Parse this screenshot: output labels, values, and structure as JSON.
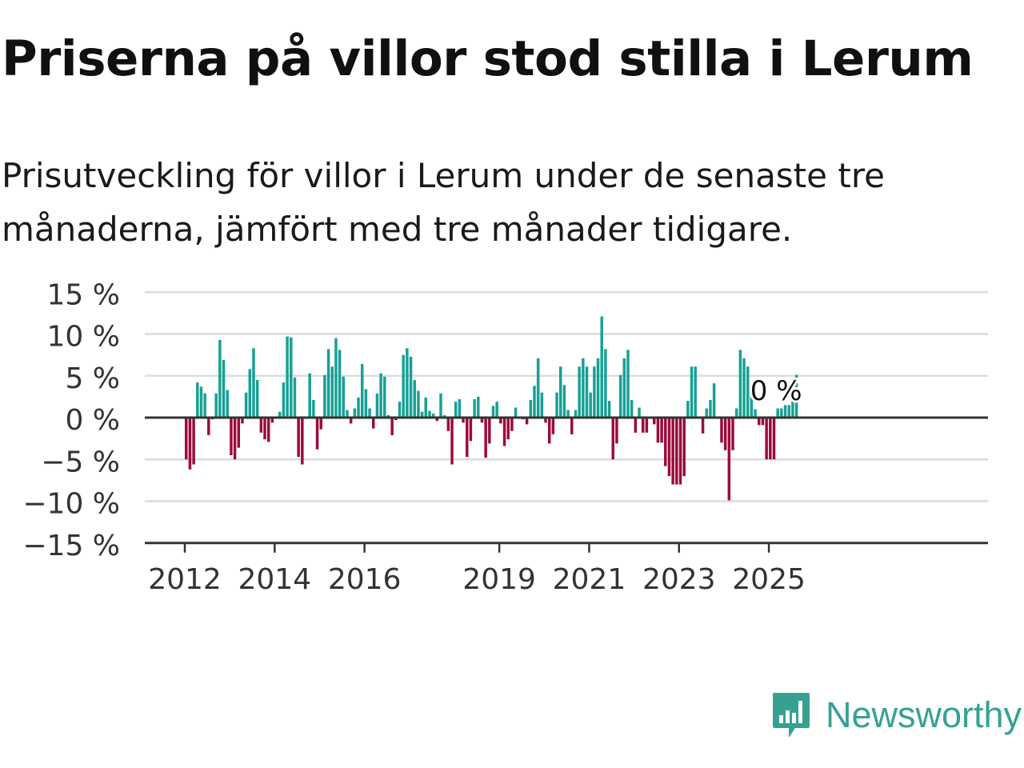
{
  "title": "Priserna på villor stod stilla i Lerum",
  "subtitle": "Prisutveckling för villor i Lerum under de senaste tre månaderna, jämfört med tre månader tidigare.",
  "logo": {
    "name": "Newsworthy",
    "icon": "newsworthy-bar-chart-icon"
  },
  "colors": {
    "positive": "#17a094",
    "negative": "#9b0a3c",
    "grid": "#dcdcdc",
    "axis": "#333333",
    "logo": "#36a193"
  },
  "chart_data": {
    "type": "bar",
    "title": "Priserna på villor stod stilla i Lerum",
    "xlabel": "",
    "ylabel": "",
    "unit": "%",
    "ylim": [
      -15,
      15
    ],
    "y_ticks": [
      15,
      10,
      5,
      0,
      -5,
      -10,
      -15
    ],
    "y_tick_labels": [
      "15 %",
      "10 %",
      "5 %",
      "0 %",
      "−5 %",
      "−10 %",
      "−15 %"
    ],
    "x_ticks": [
      "2012",
      "2014",
      "2016",
      "2019",
      "2021",
      "2023",
      "2025"
    ],
    "x_start": "2012-01",
    "grid": true,
    "annotation": "0 %",
    "values": [
      -5,
      -6.2,
      -5.6,
      4.2,
      3.7,
      2.9,
      -2.1,
      -0.2,
      2.9,
      9.3,
      6.9,
      3.3,
      -4.5,
      -5,
      -3.6,
      -0.7,
      3,
      5.8,
      8.3,
      4.5,
      -1.8,
      -2.6,
      -2.9,
      -0.6,
      0,
      0.7,
      4.2,
      9.7,
      9.6,
      4.8,
      -4.7,
      -5.6,
      0,
      5.3,
      2.1,
      -3.8,
      -1.4,
      5.1,
      8.2,
      6.1,
      9.5,
      8.1,
      4.9,
      0.9,
      -0.7,
      1.1,
      2.4,
      6.4,
      3.4,
      1.1,
      -1.3,
      2.9,
      5.3,
      4.9,
      0.3,
      -2.1,
      -0.3,
      1.9,
      7.5,
      8.3,
      7.3,
      4.5,
      3.2,
      0.7,
      2.4,
      0.8,
      0.5,
      -0.4,
      2.9,
      0.3,
      -1.6,
      -5.6,
      1.9,
      2.2,
      -0.6,
      -4.7,
      -2.8,
      2.2,
      2.5,
      -0.6,
      -4.8,
      -3.1,
      1.4,
      1.9,
      -0.7,
      -3.4,
      -2.6,
      -1.6,
      1.2,
      0,
      -0.2,
      -0.8,
      2.1,
      3.8,
      7.1,
      3,
      -0.6,
      -3.1,
      -2,
      3,
      6.1,
      3.9,
      0.9,
      -2,
      0.9,
      6.1,
      7.1,
      6.1,
      3,
      6.1,
      7.1,
      12.1,
      8.2,
      2,
      -5,
      -3.1,
      5.1,
      7.1,
      8.1,
      2.1,
      -1.8,
      1.2,
      -1.8,
      -1.8,
      0,
      -0.8,
      -3,
      -3,
      -5.8,
      -7,
      -8,
      -8,
      -8,
      -7,
      2,
      6.1,
      6.1,
      0,
      -1.9,
      1.1,
      2.1,
      4.1,
      0,
      -3,
      -3.9,
      -9.9,
      -3.9,
      1.1,
      8.1,
      7.1,
      6.1,
      3.1,
      1,
      -0.9,
      -0.9,
      -5,
      -5,
      -5,
      1.1,
      1.1,
      1.5,
      1.5,
      2,
      5.1
    ]
  }
}
